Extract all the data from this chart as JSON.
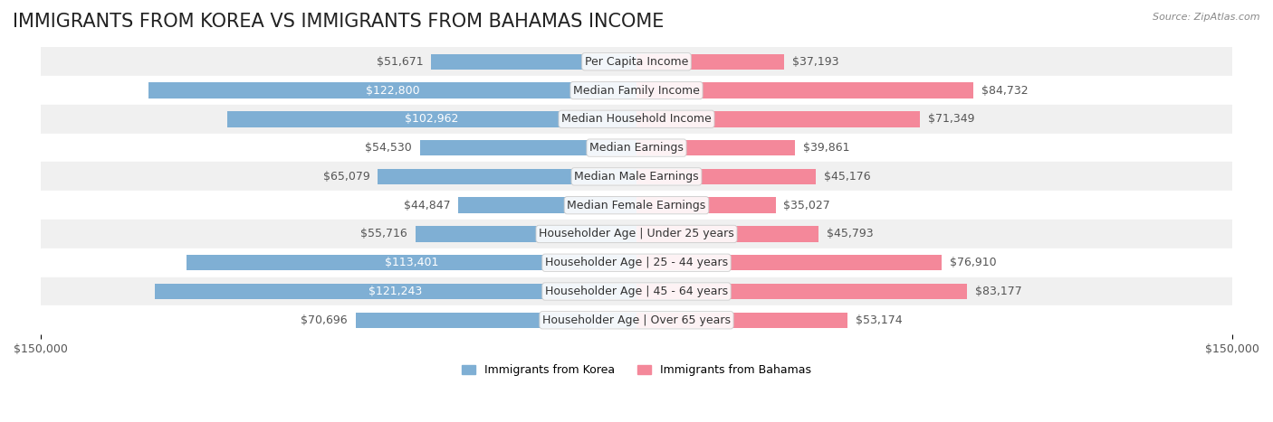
{
  "title": "IMMIGRANTS FROM KOREA VS IMMIGRANTS FROM BAHAMAS INCOME",
  "source": "Source: ZipAtlas.com",
  "categories": [
    "Per Capita Income",
    "Median Family Income",
    "Median Household Income",
    "Median Earnings",
    "Median Male Earnings",
    "Median Female Earnings",
    "Householder Age | Under 25 years",
    "Householder Age | 25 - 44 years",
    "Householder Age | 45 - 64 years",
    "Householder Age | Over 65 years"
  ],
  "korea_values": [
    51671,
    122800,
    102962,
    54530,
    65079,
    44847,
    55716,
    113401,
    121243,
    70696
  ],
  "bahamas_values": [
    37193,
    84732,
    71349,
    39861,
    45176,
    35027,
    45793,
    76910,
    83177,
    53174
  ],
  "korea_labels": [
    "$51,671",
    "$122,800",
    "$102,962",
    "$54,530",
    "$65,079",
    "$44,847",
    "$55,716",
    "$113,401",
    "$121,243",
    "$70,696"
  ],
  "bahamas_labels": [
    "$37,193",
    "$84,732",
    "$71,349",
    "$39,861",
    "$45,176",
    "$35,027",
    "$45,793",
    "$76,910",
    "$83,177",
    "$53,174"
  ],
  "korea_color": "#7fafd4",
  "bahamas_color": "#f4889a",
  "korea_label_color_inside": "#ffffff",
  "korea_label_color_outside": "#555555",
  "bahamas_label_color_outside": "#555555",
  "bar_height": 0.55,
  "max_value": 150000,
  "background_color": "#ffffff",
  "row_bg_colors": [
    "#f0f0f0",
    "#ffffff"
  ],
  "legend_korea": "Immigrants from Korea",
  "legend_bahamas": "Immigrants from Bahamas",
  "title_fontsize": 15,
  "label_fontsize": 9,
  "category_fontsize": 9,
  "axis_fontsize": 9
}
